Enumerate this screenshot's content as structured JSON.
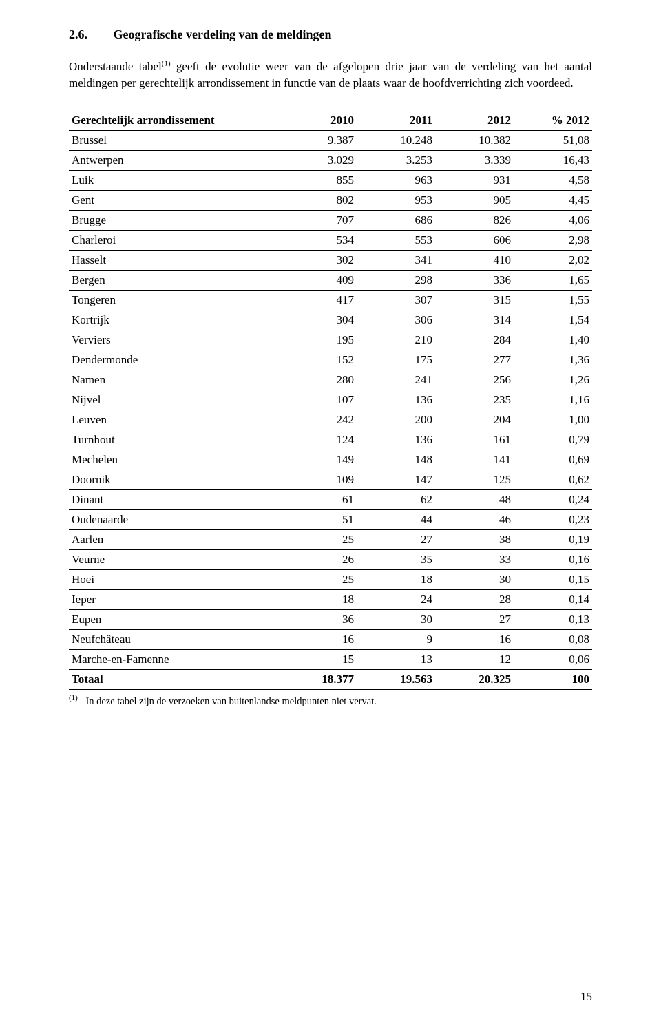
{
  "heading": {
    "number": "2.6.",
    "title": "Geografische verdeling van de meldingen"
  },
  "intro": {
    "pre_sup": "Onderstaande tabel",
    "sup": "(1)",
    "post_sup": " geeft de evolutie weer van de afgelopen drie jaar van de verdeling van het aantal meldingen per gerechtelijk arrondissement in functie van de plaats waar de hoofdverrichting zich voordeed."
  },
  "table": {
    "columns": [
      "Gerechtelijk arrondissement",
      "2010",
      "2011",
      "2012",
      "% 2012"
    ],
    "rows": [
      [
        "Brussel",
        "9.387",
        "10.248",
        "10.382",
        "51,08"
      ],
      [
        "Antwerpen",
        "3.029",
        "3.253",
        "3.339",
        "16,43"
      ],
      [
        "Luik",
        "855",
        "963",
        "931",
        "4,58"
      ],
      [
        "Gent",
        "802",
        "953",
        "905",
        "4,45"
      ],
      [
        "Brugge",
        "707",
        "686",
        "826",
        "4,06"
      ],
      [
        "Charleroi",
        "534",
        "553",
        "606",
        "2,98"
      ],
      [
        "Hasselt",
        "302",
        "341",
        "410",
        "2,02"
      ],
      [
        "Bergen",
        "409",
        "298",
        "336",
        "1,65"
      ],
      [
        "Tongeren",
        "417",
        "307",
        "315",
        "1,55"
      ],
      [
        "Kortrijk",
        "304",
        "306",
        "314",
        "1,54"
      ],
      [
        "Verviers",
        "195",
        "210",
        "284",
        "1,40"
      ],
      [
        "Dendermonde",
        "152",
        "175",
        "277",
        "1,36"
      ],
      [
        "Namen",
        "280",
        "241",
        "256",
        "1,26"
      ],
      [
        "Nijvel",
        "107",
        "136",
        "235",
        "1,16"
      ],
      [
        "Leuven",
        "242",
        "200",
        "204",
        "1,00"
      ],
      [
        "Turnhout",
        "124",
        "136",
        "161",
        "0,79"
      ],
      [
        "Mechelen",
        "149",
        "148",
        "141",
        "0,69"
      ],
      [
        "Doornik",
        "109",
        "147",
        "125",
        "0,62"
      ],
      [
        "Dinant",
        "61",
        "62",
        "48",
        "0,24"
      ],
      [
        "Oudenaarde",
        "51",
        "44",
        "46",
        "0,23"
      ],
      [
        "Aarlen",
        "25",
        "27",
        "38",
        "0,19"
      ],
      [
        "Veurne",
        "26",
        "35",
        "33",
        "0,16"
      ],
      [
        "Hoei",
        "25",
        "18",
        "30",
        "0,15"
      ],
      [
        "Ieper",
        "18",
        "24",
        "28",
        "0,14"
      ],
      [
        "Eupen",
        "36",
        "30",
        "27",
        "0,13"
      ],
      [
        "Neufchâteau",
        "16",
        "9",
        "16",
        "0,08"
      ],
      [
        "Marche-en-Famenne",
        "15",
        "13",
        "12",
        "0,06"
      ]
    ],
    "total": {
      "label": "Totaal",
      "values": [
        "18.377",
        "19.563",
        "20.325",
        "100"
      ]
    }
  },
  "footnote": {
    "marker": "(1)",
    "text": "In deze tabel zijn de verzoeken van buitenlandse meldpunten niet vervat."
  },
  "page_number": "15"
}
